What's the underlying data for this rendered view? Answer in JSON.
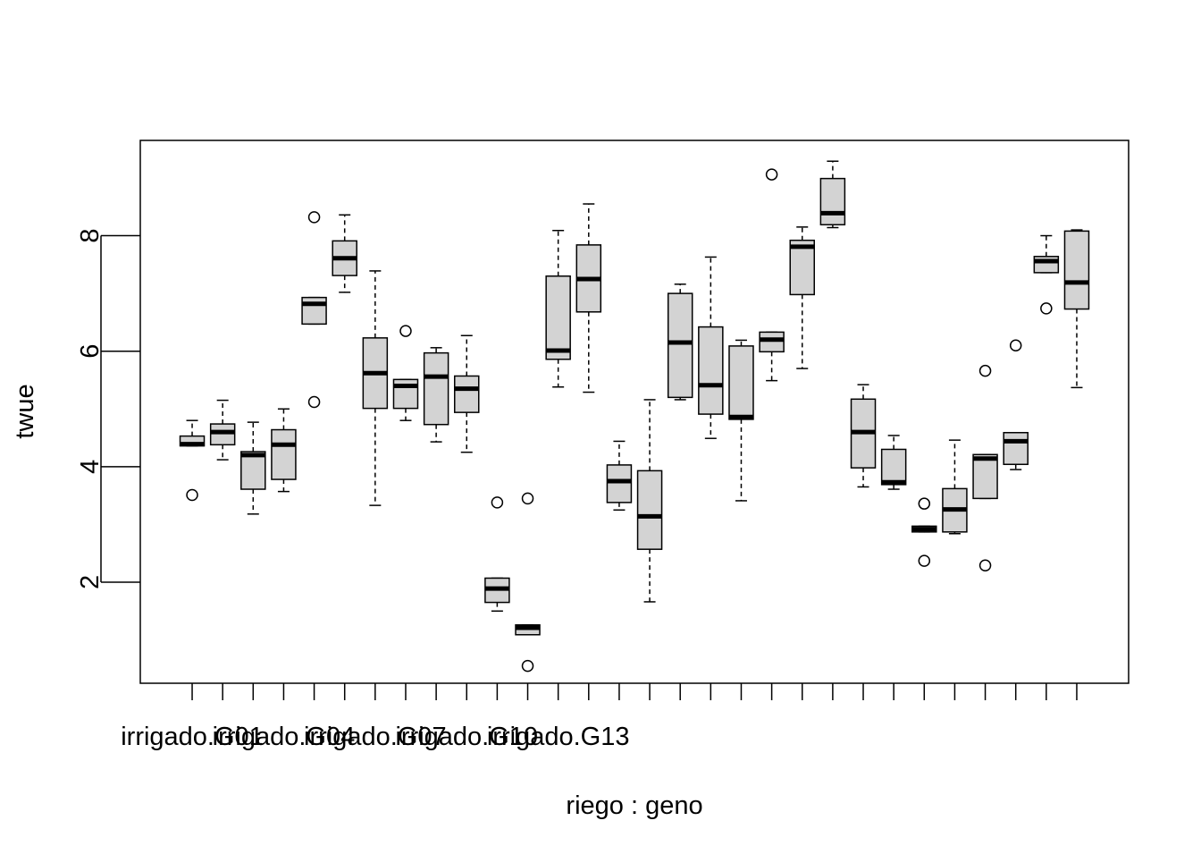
{
  "chart_data": {
    "type": "boxplot",
    "xlabel": "riego : geno",
    "ylabel": "twue",
    "ylim": [
      0.25,
      9.65
    ],
    "y_ticks": [
      2,
      4,
      6,
      8
    ],
    "x_tick_labels": [
      "irrigado.G01",
      "irrigado.G04",
      "irrigado.G07",
      "irrigado.G10",
      "irrigado.G13"
    ],
    "x_tick_label_positions": [
      1,
      4,
      7,
      10,
      13
    ],
    "box_fill": "#d3d3d3",
    "boxes": [
      {
        "index": 1,
        "whisker_low": 4.36,
        "q1": 4.36,
        "median": 4.39,
        "q3": 4.53,
        "whisker_high": 4.8,
        "outliers": [
          3.51
        ]
      },
      {
        "index": 2,
        "whisker_low": 4.12,
        "q1": 4.38,
        "median": 4.6,
        "q3": 4.74,
        "whisker_high": 5.15,
        "outliers": []
      },
      {
        "index": 3,
        "whisker_low": 3.18,
        "q1": 3.61,
        "median": 4.2,
        "q3": 4.26,
        "whisker_high": 4.77,
        "outliers": []
      },
      {
        "index": 4,
        "whisker_low": 3.57,
        "q1": 3.78,
        "median": 4.38,
        "q3": 4.64,
        "whisker_high": 5.0,
        "outliers": []
      },
      {
        "index": 5,
        "whisker_low": 6.47,
        "q1": 6.47,
        "median": 6.82,
        "q3": 6.93,
        "whisker_high": 6.93,
        "outliers": [
          8.32,
          5.12
        ]
      },
      {
        "index": 6,
        "whisker_low": 7.02,
        "q1": 7.31,
        "median": 7.61,
        "q3": 7.91,
        "whisker_high": 8.36,
        "outliers": []
      },
      {
        "index": 7,
        "whisker_low": 3.33,
        "q1": 5.01,
        "median": 5.62,
        "q3": 6.23,
        "whisker_high": 7.39,
        "outliers": []
      },
      {
        "index": 8,
        "whisker_low": 4.8,
        "q1": 5.01,
        "median": 5.4,
        "q3": 5.51,
        "whisker_high": 5.51,
        "outliers": [
          6.35
        ]
      },
      {
        "index": 9,
        "whisker_low": 4.43,
        "q1": 4.73,
        "median": 5.56,
        "q3": 5.97,
        "whisker_high": 6.06,
        "outliers": []
      },
      {
        "index": 10,
        "whisker_low": 4.25,
        "q1": 4.94,
        "median": 5.35,
        "q3": 5.57,
        "whisker_high": 6.27,
        "outliers": []
      },
      {
        "index": 11,
        "whisker_low": 1.5,
        "q1": 1.65,
        "median": 1.89,
        "q3": 2.07,
        "whisker_high": 2.07,
        "outliers": [
          3.38
        ]
      },
      {
        "index": 12,
        "whisker_low": 1.09,
        "q1": 1.09,
        "median": 1.21,
        "q3": 1.26,
        "whisker_high": 1.26,
        "outliers": [
          3.45,
          0.55
        ]
      },
      {
        "index": 13,
        "whisker_low": 5.38,
        "q1": 5.86,
        "median": 6.01,
        "q3": 7.3,
        "whisker_high": 8.09,
        "outliers": []
      },
      {
        "index": 14,
        "whisker_low": 5.29,
        "q1": 6.68,
        "median": 7.25,
        "q3": 7.84,
        "whisker_high": 8.55,
        "outliers": []
      },
      {
        "index": 15,
        "whisker_low": 3.25,
        "q1": 3.38,
        "median": 3.75,
        "q3": 4.03,
        "whisker_high": 4.44,
        "outliers": []
      },
      {
        "index": 16,
        "whisker_low": 1.66,
        "q1": 2.57,
        "median": 3.14,
        "q3": 3.93,
        "whisker_high": 5.16,
        "outliers": []
      },
      {
        "index": 17,
        "whisker_low": 5.16,
        "q1": 5.2,
        "median": 6.15,
        "q3": 7.0,
        "whisker_high": 7.16,
        "outliers": []
      },
      {
        "index": 18,
        "whisker_low": 4.49,
        "q1": 4.91,
        "median": 5.41,
        "q3": 6.42,
        "whisker_high": 7.63,
        "outliers": []
      },
      {
        "index": 19,
        "whisker_low": 3.41,
        "q1": 4.82,
        "median": 4.86,
        "q3": 6.09,
        "whisker_high": 6.19,
        "outliers": []
      },
      {
        "index": 20,
        "whisker_low": 5.49,
        "q1": 5.99,
        "median": 6.2,
        "q3": 6.33,
        "whisker_high": 6.33,
        "outliers": [
          9.06
        ]
      },
      {
        "index": 21,
        "whisker_low": 5.7,
        "q1": 6.98,
        "median": 7.81,
        "q3": 7.92,
        "whisker_high": 8.15,
        "outliers": []
      },
      {
        "index": 22,
        "whisker_low": 8.14,
        "q1": 8.19,
        "median": 8.39,
        "q3": 8.99,
        "whisker_high": 9.29,
        "outliers": []
      },
      {
        "index": 23,
        "whisker_low": 3.65,
        "q1": 3.98,
        "median": 4.6,
        "q3": 5.17,
        "whisker_high": 5.42,
        "outliers": []
      },
      {
        "index": 24,
        "whisker_low": 3.61,
        "q1": 3.69,
        "median": 3.73,
        "q3": 4.3,
        "whisker_high": 4.54,
        "outliers": []
      },
      {
        "index": 25,
        "whisker_low": 2.87,
        "q1": 2.87,
        "median": 2.92,
        "q3": 2.97,
        "whisker_high": 2.97,
        "outliers": [
          3.36,
          2.37
        ]
      },
      {
        "index": 26,
        "whisker_low": 2.84,
        "q1": 2.87,
        "median": 3.26,
        "q3": 3.62,
        "whisker_high": 4.46,
        "outliers": []
      },
      {
        "index": 27,
        "whisker_low": 3.45,
        "q1": 3.45,
        "median": 4.14,
        "q3": 4.21,
        "whisker_high": 4.21,
        "outliers": [
          5.66,
          2.29
        ]
      },
      {
        "index": 28,
        "whisker_low": 3.95,
        "q1": 4.04,
        "median": 4.44,
        "q3": 4.59,
        "whisker_high": 4.59,
        "outliers": [
          6.1
        ]
      },
      {
        "index": 29,
        "whisker_low": 7.36,
        "q1": 7.36,
        "median": 7.56,
        "q3": 7.64,
        "whisker_high": 8.0,
        "outliers": [
          6.74
        ]
      },
      {
        "index": 30,
        "whisker_low": 5.37,
        "q1": 6.73,
        "median": 7.19,
        "q3": 8.08,
        "whisker_high": 8.1,
        "outliers": []
      }
    ]
  }
}
